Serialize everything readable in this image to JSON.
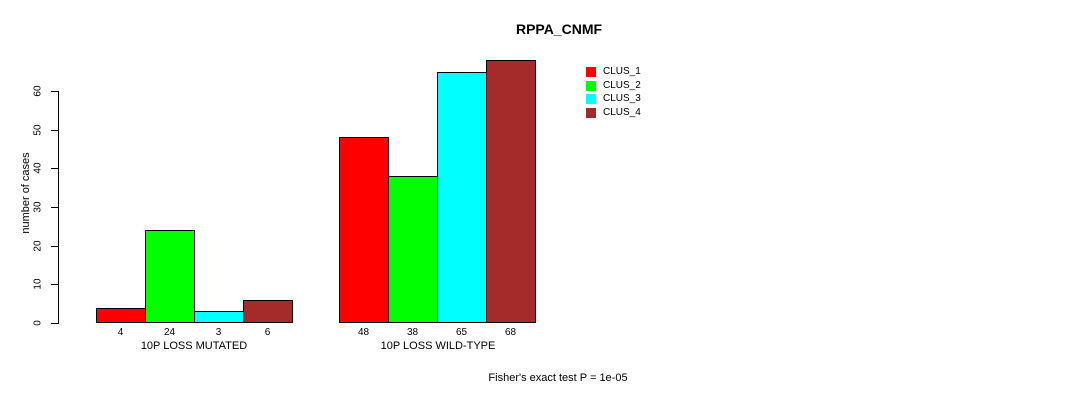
{
  "chart_data": {
    "type": "bar",
    "title": "RPPA_CNMF",
    "ylabel": "number of cases",
    "yticks": [
      0,
      10,
      20,
      30,
      40,
      50,
      60
    ],
    "ylim": [
      0,
      68
    ],
    "grid": false,
    "legend_position": "top-right-inside",
    "categories": [
      "10P LOSS MUTATED",
      "10P LOSS WILD-TYPE"
    ],
    "series": [
      {
        "name": "CLUS_1",
        "color": "#FF0000",
        "values": [
          4,
          48
        ]
      },
      {
        "name": "CLUS_2",
        "color": "#00FF00",
        "values": [
          24,
          38
        ]
      },
      {
        "name": "CLUS_3",
        "color": "#00FFFF",
        "values": [
          3,
          65
        ]
      },
      {
        "name": "CLUS_4",
        "color": "#A52A2A",
        "values": [
          6,
          68
        ]
      }
    ],
    "bar_value_labels": [
      [
        4,
        24,
        3,
        6
      ],
      [
        48,
        38,
        65,
        68
      ]
    ],
    "annotation": "Fisher's exact test P = 1e-05",
    "axis_color": "#000000",
    "bar_border_color": "#000000",
    "background_color": "#FFFFFF"
  }
}
